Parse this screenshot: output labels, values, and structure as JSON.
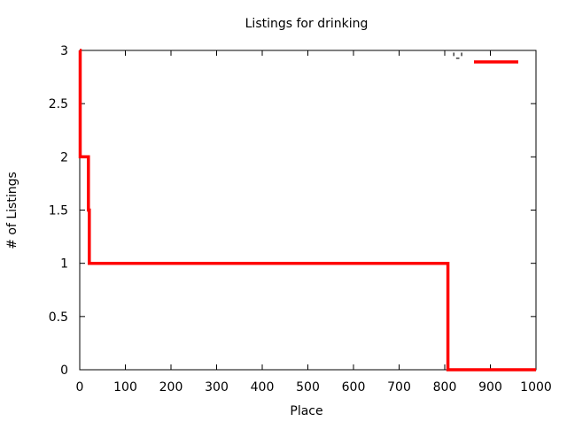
{
  "chart_data": {
    "type": "line",
    "title": "Listings for drinking",
    "xlabel": "Place",
    "ylabel": "# of Listings",
    "xlim": [
      0,
      1000
    ],
    "ylim": [
      0,
      3
    ],
    "xticks": [
      0,
      100,
      200,
      300,
      400,
      500,
      600,
      700,
      800,
      900,
      1000
    ],
    "yticks": [
      0,
      0.5,
      1,
      1.5,
      2,
      2.5,
      3
    ],
    "ytick_labels": [
      "0",
      "0.5",
      "1",
      "1.5",
      "2",
      "2.5",
      "3"
    ],
    "grid": false,
    "legend": {
      "placement": "top-right",
      "label": "'-'"
    },
    "series": [
      {
        "color": "#ff0000",
        "step": true,
        "x": [
          0,
          1,
          1,
          19,
          19,
          21,
          21,
          807,
          807,
          1000
        ],
        "y": [
          3,
          3,
          2,
          2,
          1.5,
          1.5,
          1,
          1,
          0,
          0
        ]
      }
    ]
  }
}
